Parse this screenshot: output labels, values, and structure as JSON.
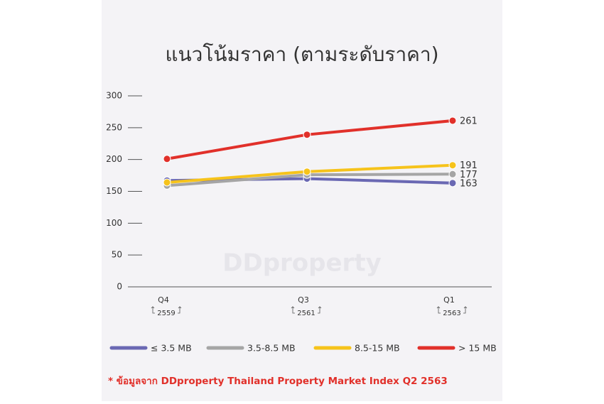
{
  "chart_data": {
    "type": "line",
    "title": "แนวโน้มราคา (ตามระดับราคา)",
    "watermark": "DDproperty",
    "categories": [
      "Q4",
      "Q3",
      "Q1"
    ],
    "category_years": [
      "2559",
      "2561",
      "2563"
    ],
    "series": [
      {
        "name": "≤ 3.5 MB",
        "color": "#6a68b3",
        "values": [
          167,
          170,
          163
        ]
      },
      {
        "name": "3.5-8.5 MB",
        "color": "#a5a5a5",
        "values": [
          159,
          176,
          177
        ]
      },
      {
        "name": "8.5-15 MB",
        "color": "#f6c31b",
        "values": [
          164,
          181,
          191
        ]
      },
      {
        "name": "> 15 MB",
        "color": "#e1302a",
        "values": [
          201,
          239,
          261
        ]
      }
    ],
    "ylim": [
      0,
      300
    ],
    "yticks": [
      0,
      50,
      100,
      150,
      200,
      250,
      300
    ],
    "footnote": "* ข้อมูลจาก DDproperty Thailand Property Market Index Q2 2563"
  }
}
